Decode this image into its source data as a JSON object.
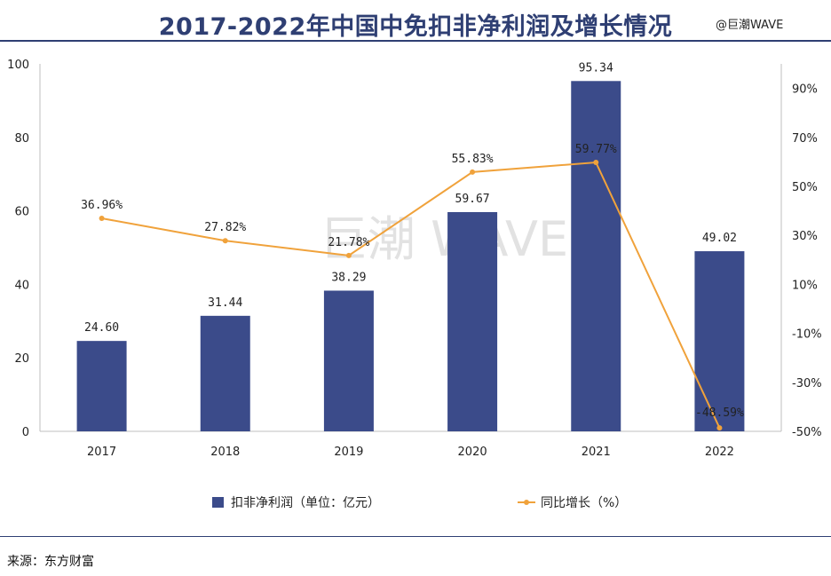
{
  "header": {
    "title": "2017-2022年中国中免扣非净利润及增长情况",
    "watermark_top": "@巨潮WAVE"
  },
  "watermark": "巨潮 WAVE",
  "footer": {
    "source": "来源：东方财富"
  },
  "colors": {
    "bar": "#3b4b8a",
    "line": "#f0a23b",
    "title": "#2f3f73"
  },
  "chart_data": {
    "type": "bar",
    "categories": [
      "2017",
      "2018",
      "2019",
      "2020",
      "2021",
      "2022"
    ],
    "series": [
      {
        "name": "扣非净利润（单位：亿元）",
        "type": "bar",
        "axis": "left",
        "values": [
          24.6,
          31.44,
          38.29,
          59.67,
          95.34,
          49.02
        ],
        "labels": [
          "24.60",
          "31.44",
          "38.29",
          "59.67",
          "95.34",
          "49.02"
        ]
      },
      {
        "name": "同比增长（%）",
        "type": "line",
        "axis": "right",
        "values": [
          36.96,
          27.82,
          21.78,
          55.83,
          59.77,
          -48.59
        ],
        "labels": [
          "36.96%",
          "27.82%",
          "21.78%",
          "55.83%",
          "59.77%",
          "-48.59%"
        ]
      }
    ],
    "y_left": {
      "ylim": [
        0,
        100
      ],
      "ticks": [
        "0",
        "20",
        "40",
        "60",
        "80",
        "100"
      ]
    },
    "y_right": {
      "ylim": [
        -50,
        100
      ],
      "ticks": [
        "90%",
        "70%",
        "50%",
        "30%",
        "10%",
        "-10%",
        "-30%",
        "-50%"
      ]
    },
    "grid": false,
    "legend_position": "bottom"
  }
}
